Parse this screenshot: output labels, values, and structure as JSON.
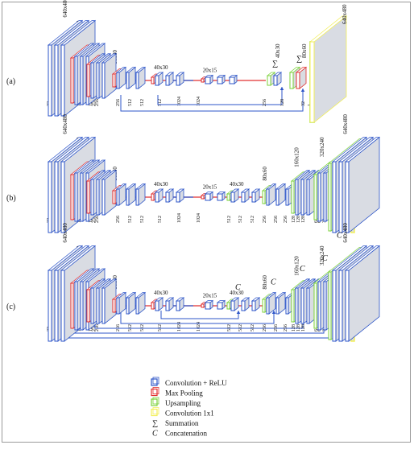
{
  "panels": [
    {
      "label": "(a)",
      "res": [
        "640x480",
        "320x240",
        "160x120",
        "80x60",
        "40x30",
        "20x15",
        "40x30",
        "80x60"
      ],
      "ch": [
        "32",
        "32",
        "32",
        "64",
        "64",
        "128",
        "128",
        "256",
        "256",
        "256",
        "512",
        "512",
        "512",
        "1024",
        "1024",
        "256",
        "128",
        "32",
        "1"
      ],
      "ops": [
        "∑",
        "∑"
      ]
    },
    {
      "label": "(b)",
      "res": [
        "640x480",
        "320x240",
        "160x120",
        "80x60",
        "40x30",
        "20x15",
        "40x30",
        "80x60",
        "160x120",
        "320x240",
        "640x480"
      ],
      "ch": [
        "32",
        "32",
        "32",
        "64",
        "64",
        "128",
        "128",
        "256",
        "256",
        "256",
        "512",
        "512",
        "512",
        "1024",
        "1024",
        "512",
        "512",
        "512",
        "256",
        "256",
        "256",
        "128",
        "128",
        "128",
        "64",
        "64",
        "32",
        "32",
        "1"
      ],
      "ops": []
    },
    {
      "label": "(c)",
      "res": [
        "640x480",
        "320x240",
        "160x120",
        "80x60",
        "40x30",
        "20x15",
        "40x30",
        "80x60",
        "160x120",
        "320x240",
        "640x480"
      ],
      "ch": [
        "32",
        "32",
        "32",
        "64",
        "64",
        "128",
        "128",
        "256",
        "256",
        "256",
        "512",
        "512",
        "512",
        "1024",
        "1024",
        "512",
        "512",
        "512",
        "256",
        "256",
        "256",
        "128",
        "128",
        "128",
        "64",
        "64",
        "32",
        "32",
        "1"
      ],
      "ops": [
        "C",
        "C",
        "C",
        "C",
        "C"
      ]
    }
  ],
  "legend": [
    {
      "label": "Convolution + ReLU",
      "color": "#2d55c8",
      "kind": "box"
    },
    {
      "label": "Max Pooling",
      "color": "#e23030",
      "kind": "box"
    },
    {
      "label": "Upsampling",
      "color": "#7bd13a",
      "kind": "box"
    },
    {
      "label": "Convolution 1x1",
      "color": "#f2ef5a",
      "kind": "box"
    },
    {
      "label": "Summation",
      "symbol": "∑",
      "kind": "symbol"
    },
    {
      "label": "Concatenation",
      "symbol": "C",
      "kind": "symbol"
    }
  ]
}
